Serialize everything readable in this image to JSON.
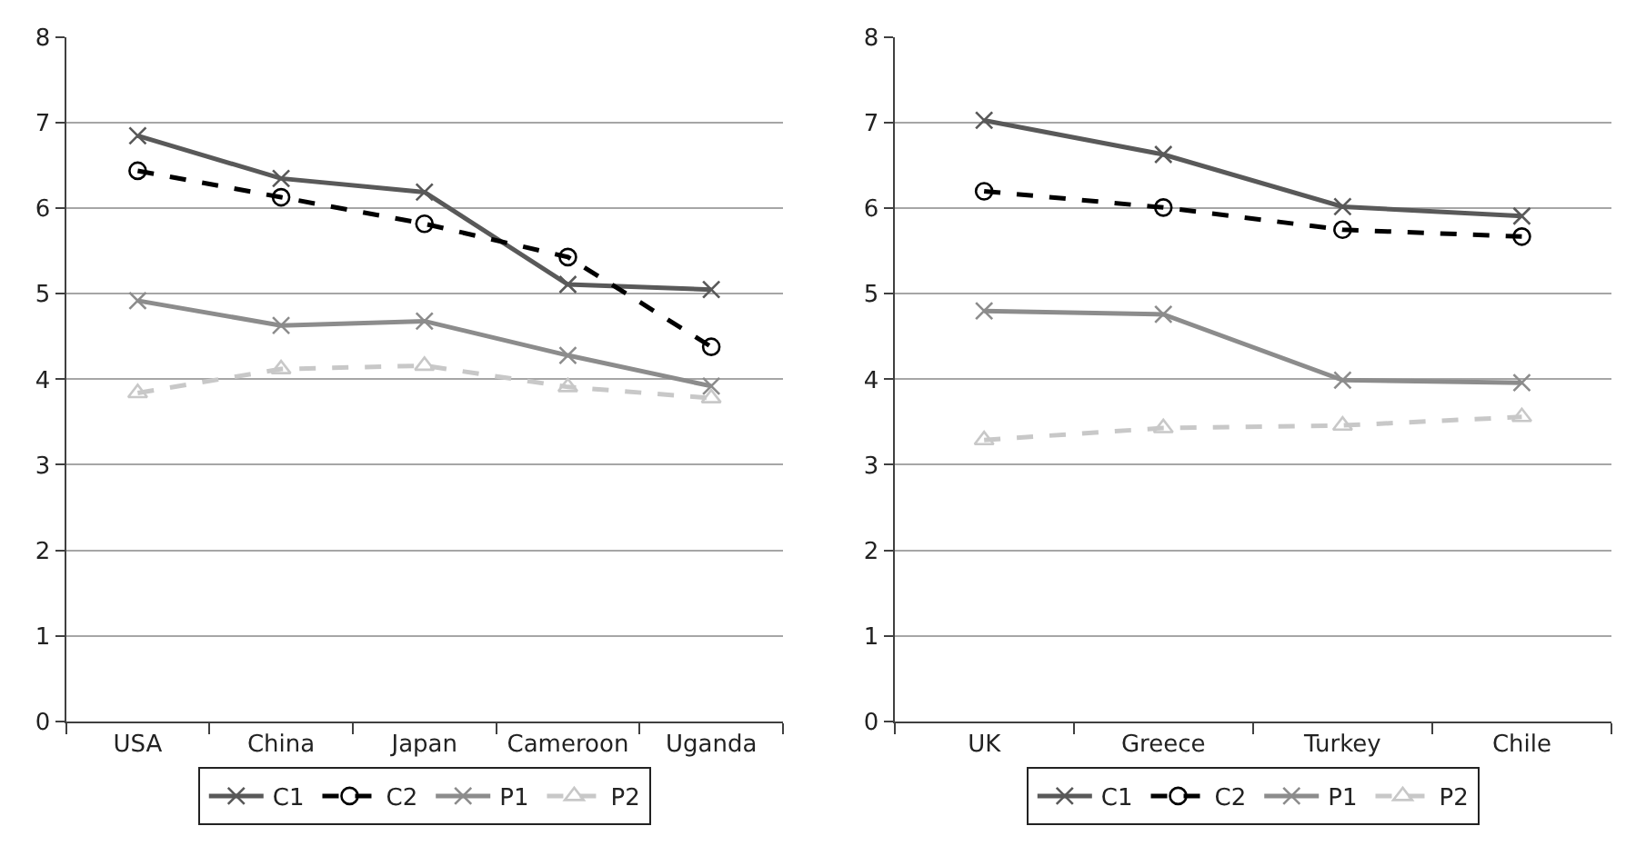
{
  "chart_data": [
    {
      "type": "line",
      "categories": [
        "USA",
        "China",
        "Japan",
        "Cameroon",
        "Uganda"
      ],
      "ylim": [
        0,
        8
      ],
      "yticks": [
        0,
        1,
        2,
        3,
        4,
        5,
        6,
        7,
        8
      ],
      "grid": "y",
      "legend": "bottom",
      "series": [
        {
          "name": "C1",
          "color": "#595959",
          "marker": "cross",
          "line_style": "solid",
          "values": [
            6.85,
            6.35,
            6.19,
            5.11,
            5.05
          ]
        },
        {
          "name": "C2",
          "color": "#000000",
          "marker": "circle",
          "line_style": "dashed",
          "values": [
            6.44,
            6.13,
            5.82,
            5.43,
            4.38
          ]
        },
        {
          "name": "P1",
          "color": "#8c8c8c",
          "marker": "cross",
          "line_style": "solid",
          "values": [
            4.92,
            4.63,
            4.68,
            4.28,
            3.92
          ]
        },
        {
          "name": "P2",
          "color": "#c8c8c8",
          "marker": "triangle",
          "line_style": "dashed",
          "values": [
            3.84,
            4.12,
            4.16,
            3.91,
            3.78
          ]
        }
      ]
    },
    {
      "type": "line",
      "categories": [
        "UK",
        "Greece",
        "Turkey",
        "Chile"
      ],
      "ylim": [
        0,
        8
      ],
      "yticks": [
        0,
        1,
        2,
        3,
        4,
        5,
        6,
        7,
        8
      ],
      "grid": "y",
      "legend": "bottom",
      "series": [
        {
          "name": "C1",
          "color": "#595959",
          "marker": "cross",
          "line_style": "solid",
          "values": [
            7.03,
            6.63,
            6.02,
            5.91
          ]
        },
        {
          "name": "C2",
          "color": "#000000",
          "marker": "circle",
          "line_style": "dashed",
          "values": [
            6.2,
            6.01,
            5.75,
            5.67
          ]
        },
        {
          "name": "P1",
          "color": "#8c8c8c",
          "marker": "cross",
          "line_style": "solid",
          "values": [
            4.8,
            4.76,
            3.99,
            3.96
          ]
        },
        {
          "name": "P2",
          "color": "#c8c8c8",
          "marker": "triangle",
          "line_style": "dashed",
          "values": [
            3.29,
            3.43,
            3.46,
            3.56
          ]
        }
      ]
    }
  ]
}
